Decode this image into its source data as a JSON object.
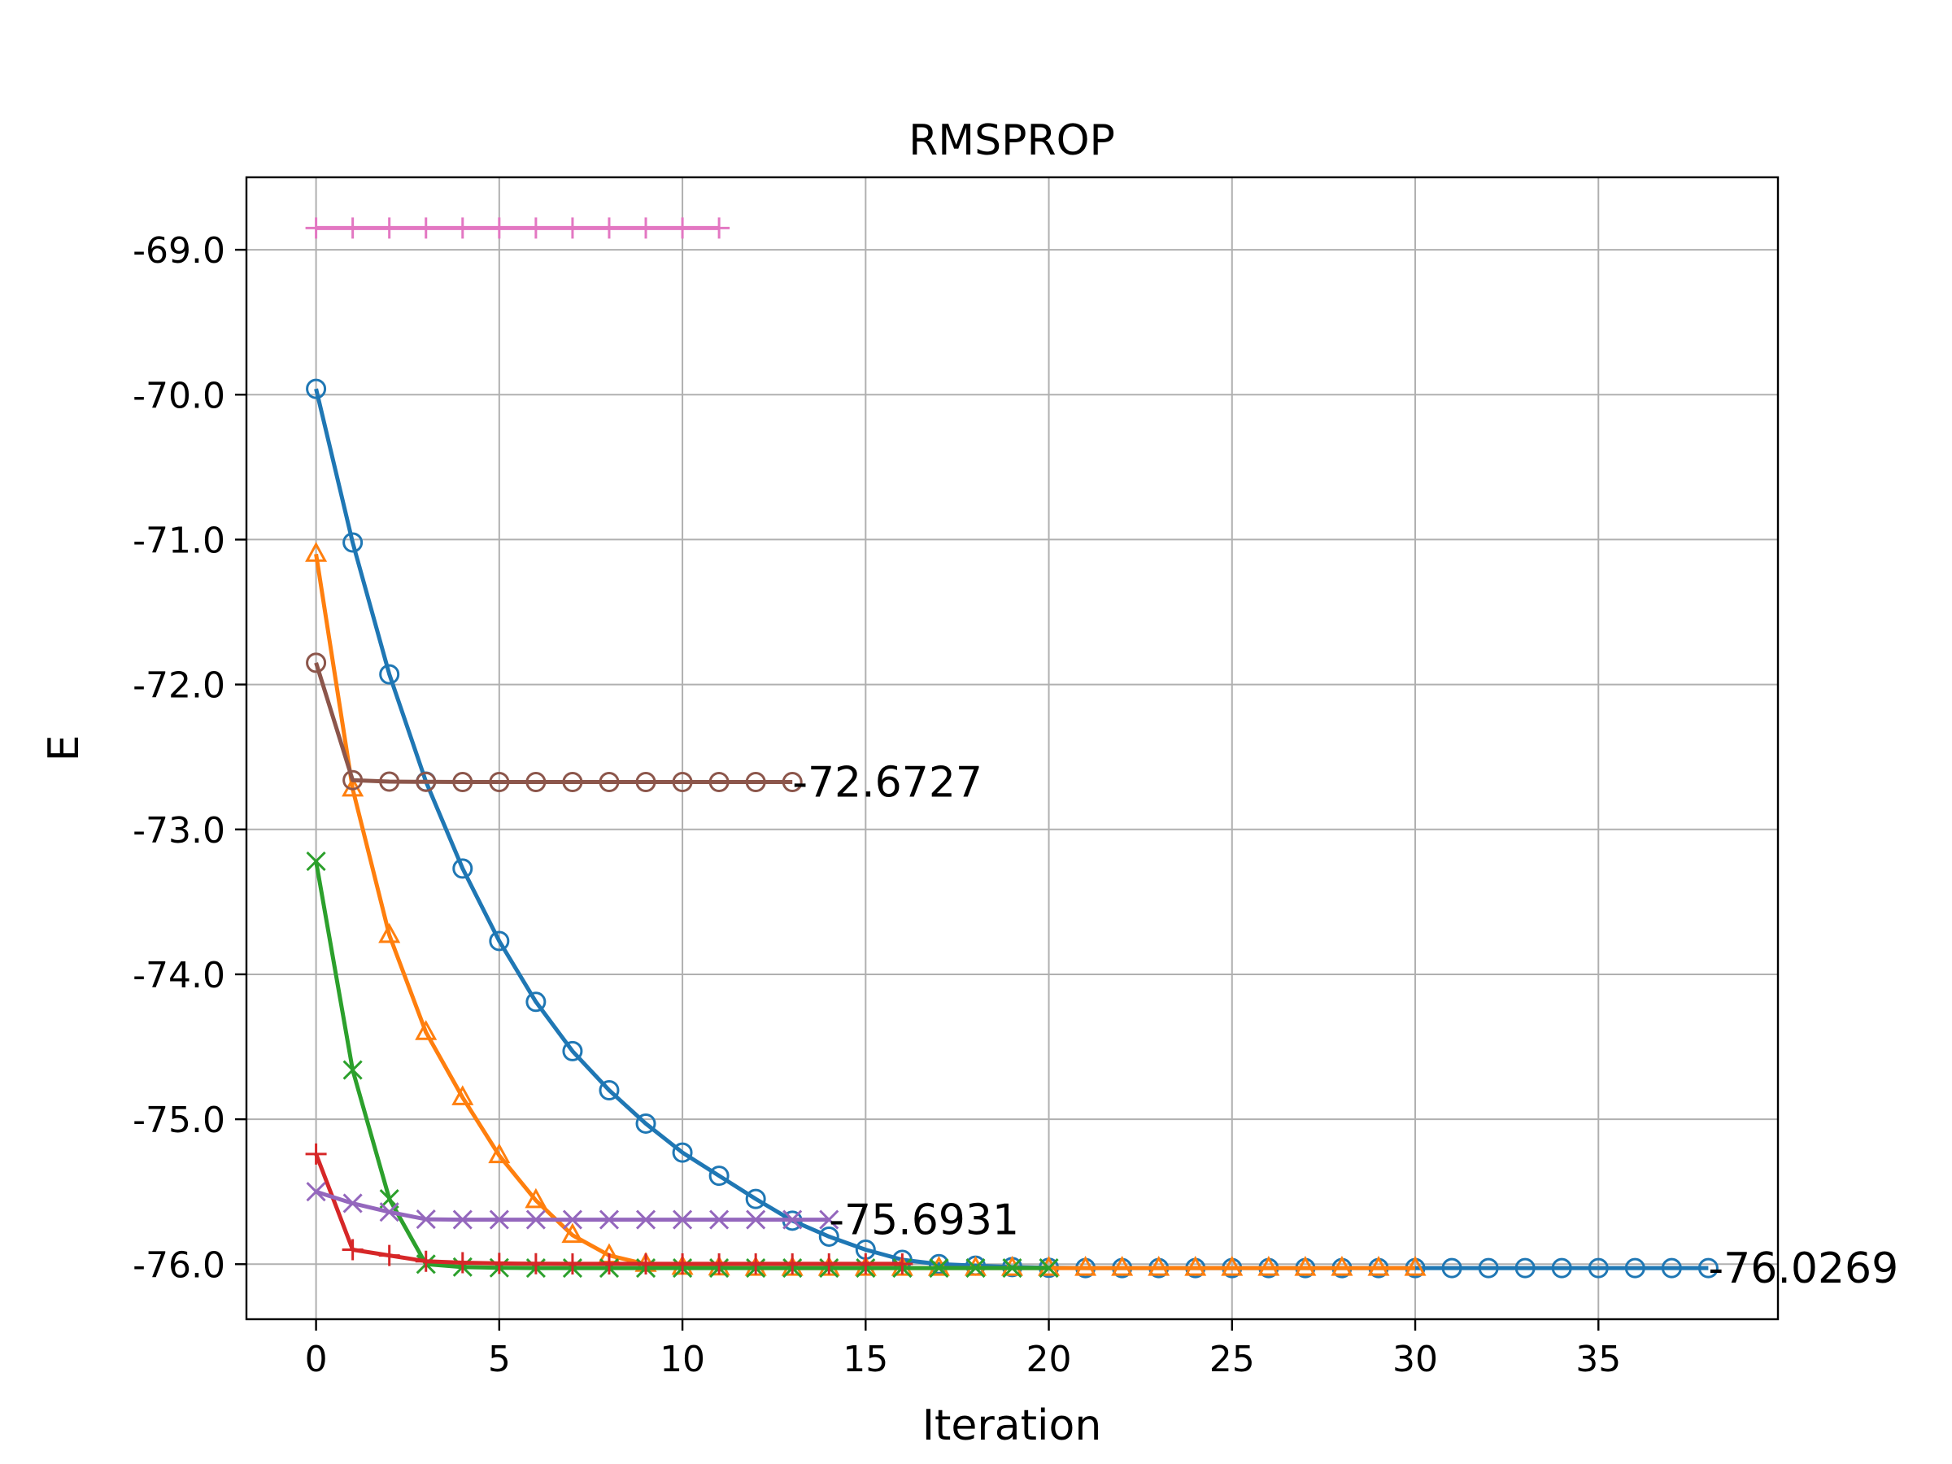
{
  "chart_data": {
    "type": "line",
    "title": "RMSPROP",
    "xlabel": "Iteration",
    "ylabel": "E",
    "xlim": [
      -1.9,
      39.9
    ],
    "ylim": [
      -76.38,
      -68.5
    ],
    "xticks": [
      0,
      5,
      10,
      15,
      20,
      25,
      30,
      35
    ],
    "yticks": [
      -69.0,
      -70.0,
      -71.0,
      -72.0,
      -73.0,
      -74.0,
      -75.0,
      -76.0
    ],
    "ytick_labels": [
      "-69.0",
      "-70.0",
      "-71.0",
      "-72.0",
      "-73.0",
      "-74.0",
      "-75.0",
      "-76.0"
    ],
    "grid": true,
    "series": [
      {
        "color": "#1f77b4",
        "marker": "circle",
        "x": [
          0,
          1,
          2,
          3,
          4,
          5,
          6,
          7,
          8,
          9,
          10,
          11,
          12,
          13,
          14,
          15,
          16,
          17,
          18,
          19,
          20,
          21,
          22,
          23,
          24,
          25,
          26,
          27,
          28,
          29,
          30,
          31,
          32,
          33,
          34,
          35,
          36,
          37,
          38
        ],
        "values": [
          -69.96,
          -71.02,
          -71.93,
          -72.67,
          -73.27,
          -73.77,
          -74.19,
          -74.53,
          -74.8,
          -75.03,
          -75.23,
          -75.39,
          -75.55,
          -75.7,
          -75.81,
          -75.9,
          -75.97,
          -76.0,
          -76.01,
          -76.02,
          -76.025,
          -76.027,
          -76.027,
          -76.027,
          -76.027,
          -76.027,
          -76.027,
          -76.027,
          -76.027,
          -76.027,
          -76.027,
          -76.027,
          -76.027,
          -76.027,
          -76.027,
          -76.027,
          -76.027,
          -76.027,
          -76.027
        ]
      },
      {
        "color": "#ff7f0e",
        "marker": "triangle",
        "x": [
          0,
          1,
          2,
          3,
          4,
          5,
          6,
          7,
          8,
          9,
          10,
          11,
          12,
          13,
          14,
          15,
          16,
          17,
          18,
          19,
          20,
          21,
          22,
          23,
          24,
          25,
          26,
          27,
          28,
          29,
          30
        ],
        "values": [
          -71.1,
          -72.72,
          -73.73,
          -74.4,
          -74.85,
          -75.25,
          -75.56,
          -75.8,
          -75.94,
          -76.0,
          -76.02,
          -76.025,
          -76.027,
          -76.027,
          -76.027,
          -76.027,
          -76.027,
          -76.027,
          -76.027,
          -76.027,
          -76.027,
          -76.027,
          -76.027,
          -76.027,
          -76.027,
          -76.027,
          -76.027,
          -76.027,
          -76.027,
          -76.027,
          -76.027
        ]
      },
      {
        "color": "#2ca02c",
        "marker": "x",
        "x": [
          0,
          1,
          2,
          3,
          4,
          5,
          6,
          7,
          8,
          9,
          10,
          11,
          12,
          13,
          14,
          15,
          16,
          17,
          18,
          19,
          20
        ],
        "values": [
          -73.22,
          -74.66,
          -75.55,
          -76.0,
          -76.02,
          -76.025,
          -76.027,
          -76.027,
          -76.027,
          -76.027,
          -76.027,
          -76.027,
          -76.027,
          -76.027,
          -76.027,
          -76.027,
          -76.027,
          -76.027,
          -76.027,
          -76.027,
          -76.027
        ]
      },
      {
        "color": "#d62728",
        "marker": "plus",
        "x": [
          0,
          1,
          2,
          3,
          4,
          5,
          6,
          7,
          8,
          9,
          10,
          11,
          12,
          13,
          14,
          15,
          16
        ],
        "values": [
          -75.24,
          -75.9,
          -75.94,
          -75.98,
          -75.99,
          -75.995,
          -75.997,
          -75.998,
          -75.998,
          -75.998,
          -75.998,
          -75.998,
          -75.998,
          -75.998,
          -75.998,
          -75.998,
          -75.998
        ]
      },
      {
        "color": "#9467bd",
        "marker": "x",
        "x": [
          0,
          1,
          2,
          3,
          4,
          5,
          6,
          7,
          8,
          9,
          10,
          11,
          12,
          13,
          14
        ],
        "values": [
          -75.5,
          -75.58,
          -75.64,
          -75.69,
          -75.693,
          -75.693,
          -75.693,
          -75.693,
          -75.693,
          -75.693,
          -75.693,
          -75.693,
          -75.693,
          -75.693,
          -75.693
        ]
      },
      {
        "color": "#8c564b",
        "marker": "circle",
        "x": [
          0,
          1,
          2,
          3,
          4,
          5,
          6,
          7,
          8,
          9,
          10,
          11,
          12,
          13
        ],
        "values": [
          -71.85,
          -72.66,
          -72.67,
          -72.672,
          -72.673,
          -72.673,
          -72.673,
          -72.673,
          -72.673,
          -72.673,
          -72.673,
          -72.673,
          -72.673,
          -72.673
        ]
      },
      {
        "color": "#e377c2",
        "marker": "plus",
        "x": [
          0,
          1,
          2,
          3,
          4,
          5,
          6,
          7,
          8,
          9,
          10,
          11
        ],
        "values": [
          -68.85,
          -68.85,
          -68.85,
          -68.85,
          -68.85,
          -68.85,
          -68.85,
          -68.85,
          -68.85,
          -68.85,
          -68.85,
          -68.85
        ]
      }
    ],
    "annotations": [
      {
        "text": "-72.6727",
        "x": 13,
        "y": -72.6727
      },
      {
        "text": "-75.6931",
        "x": 14,
        "y": -75.6931
      },
      {
        "text": "-76.0269",
        "x": 38,
        "y": -76.0269
      }
    ]
  }
}
